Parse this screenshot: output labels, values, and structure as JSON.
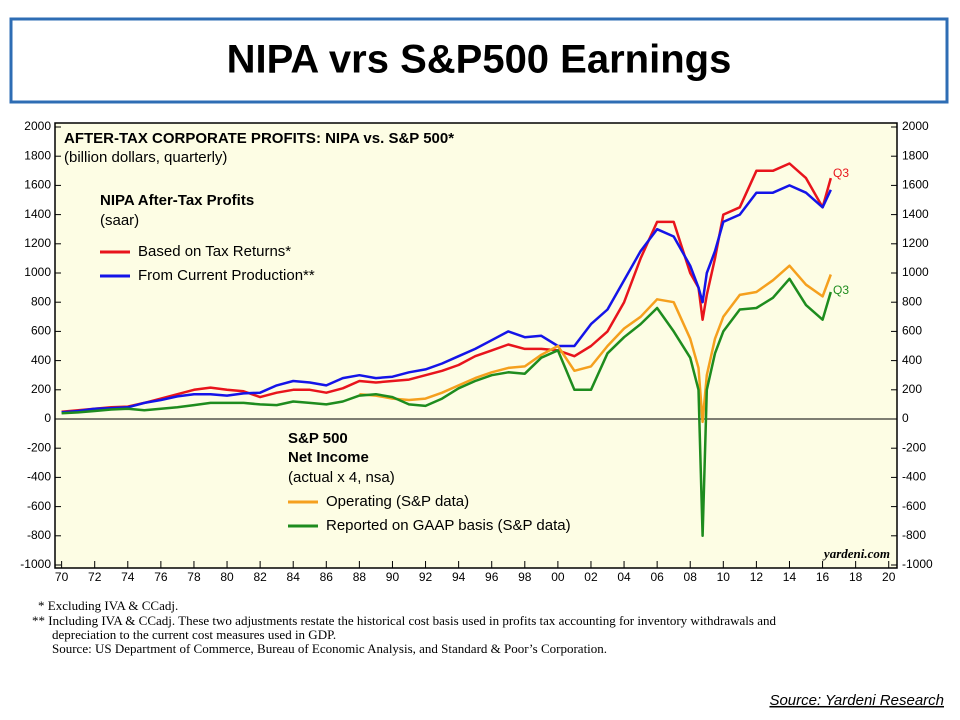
{
  "slide_title": "NIPA vrs S&P500 Earnings",
  "chart_data": {
    "type": "line",
    "title": "AFTER-TAX CORPORATE PROFITS: NIPA vs. S&P 500*",
    "subtitle": "(billion dollars, quarterly)",
    "legend_groups": [
      {
        "title": "NIPA After-Tax Profits",
        "subtitle": "(saar)"
      },
      {
        "title": "S&P 500",
        "title2": "Net Income",
        "subtitle": "(actual x 4, nsa)"
      }
    ],
    "annotations": [
      "Q3",
      "Q3"
    ],
    "credit": "yardeni.com",
    "x": [
      1970,
      1971,
      1972,
      1973,
      1974,
      1975,
      1976,
      1977,
      1978,
      1979,
      1980,
      1981,
      1982,
      1983,
      1984,
      1985,
      1986,
      1987,
      1988,
      1989,
      1990,
      1991,
      1992,
      1993,
      1994,
      1995,
      1996,
      1997,
      1998,
      1999,
      2000,
      2001,
      2002,
      2003,
      2004,
      2005,
      2006,
      2007,
      2008,
      2008.5,
      2008.75,
      2009,
      2009.5,
      2010,
      2011,
      2012,
      2013,
      2014,
      2015,
      2016,
      2016.5
    ],
    "series": [
      {
        "name": "Based on Tax Returns*",
        "color": "#e8141c",
        "values": [
          50,
          60,
          70,
          80,
          85,
          110,
          140,
          170,
          200,
          215,
          200,
          190,
          150,
          180,
          200,
          200,
          180,
          210,
          260,
          250,
          260,
          270,
          300,
          330,
          370,
          430,
          470,
          510,
          480,
          480,
          470,
          430,
          500,
          600,
          800,
          1100,
          1350,
          1350,
          1000,
          900,
          680,
          850,
          1100,
          1400,
          1450,
          1700,
          1700,
          1750,
          1650,
          1450,
          1650
        ]
      },
      {
        "name": "From Current Production**",
        "color": "#1414e8",
        "values": [
          45,
          55,
          70,
          75,
          80,
          110,
          130,
          155,
          170,
          170,
          160,
          175,
          180,
          230,
          260,
          250,
          230,
          280,
          300,
          280,
          290,
          320,
          340,
          380,
          430,
          480,
          540,
          600,
          560,
          570,
          500,
          500,
          650,
          750,
          950,
          1150,
          1300,
          1250,
          1050,
          900,
          800,
          1000,
          1150,
          1350,
          1400,
          1550,
          1550,
          1600,
          1550,
          1450,
          1570
        ]
      },
      {
        "name": "Operating (S&P data)",
        "color": "#f5a01e",
        "values": [
          null,
          null,
          null,
          null,
          null,
          null,
          null,
          null,
          null,
          null,
          null,
          null,
          null,
          null,
          null,
          null,
          null,
          null,
          170,
          160,
          140,
          130,
          140,
          180,
          230,
          280,
          320,
          350,
          360,
          440,
          500,
          330,
          360,
          500,
          620,
          700,
          820,
          800,
          550,
          350,
          -20,
          300,
          550,
          700,
          850,
          870,
          950,
          1050,
          920,
          840,
          990
        ]
      },
      {
        "name": "Reported on GAAP basis (S&P data)",
        "color": "#1e8c1e",
        "values": [
          40,
          45,
          55,
          65,
          70,
          60,
          70,
          80,
          95,
          110,
          110,
          110,
          100,
          95,
          120,
          110,
          100,
          120,
          160,
          170,
          150,
          100,
          90,
          140,
          210,
          260,
          300,
          320,
          310,
          420,
          470,
          200,
          200,
          450,
          560,
          650,
          760,
          600,
          420,
          200,
          -800,
          200,
          450,
          600,
          750,
          760,
          830,
          960,
          780,
          680,
          870
        ]
      }
    ],
    "xlim": [
      1969.6,
      2020.5
    ],
    "xticks": [
      {
        "value": 1970,
        "label": "70"
      },
      {
        "value": 1972,
        "label": "72"
      },
      {
        "value": 1974,
        "label": "74"
      },
      {
        "value": 1976,
        "label": "76"
      },
      {
        "value": 1978,
        "label": "78"
      },
      {
        "value": 1980,
        "label": "80"
      },
      {
        "value": 1982,
        "label": "82"
      },
      {
        "value": 1984,
        "label": "84"
      },
      {
        "value": 1986,
        "label": "86"
      },
      {
        "value": 1988,
        "label": "88"
      },
      {
        "value": 1990,
        "label": "90"
      },
      {
        "value": 1992,
        "label": "92"
      },
      {
        "value": 1994,
        "label": "94"
      },
      {
        "value": 1996,
        "label": "96"
      },
      {
        "value": 1998,
        "label": "98"
      },
      {
        "value": 2000,
        "label": "00"
      },
      {
        "value": 2002,
        "label": "02"
      },
      {
        "value": 2004,
        "label": "04"
      },
      {
        "value": 2006,
        "label": "06"
      },
      {
        "value": 2008,
        "label": "08"
      },
      {
        "value": 2010,
        "label": "10"
      },
      {
        "value": 2012,
        "label": "12"
      },
      {
        "value": 2014,
        "label": "14"
      },
      {
        "value": 2016,
        "label": "16"
      },
      {
        "value": 2018,
        "label": "18"
      },
      {
        "value": 2020,
        "label": "20"
      }
    ],
    "ylim": [
      -1000,
      2000
    ],
    "yticks": [
      -1000,
      -800,
      -600,
      -400,
      -200,
      0,
      200,
      400,
      600,
      800,
      1000,
      1200,
      1400,
      1600,
      1800,
      2000
    ]
  },
  "footnotes": [
    "*  Excluding IVA & CCadj.",
    "** Including IVA & CCadj. These two adjustments restate the historical cost basis used in profits tax accounting for inventory withdrawals and",
    "depreciation to the current cost measures used in GDP.",
    "Source: US Department of Commerce, Bureau of Economic Analysis, and Standard & Poor’s Corporation."
  ],
  "source": "Source:  Yardeni Research"
}
